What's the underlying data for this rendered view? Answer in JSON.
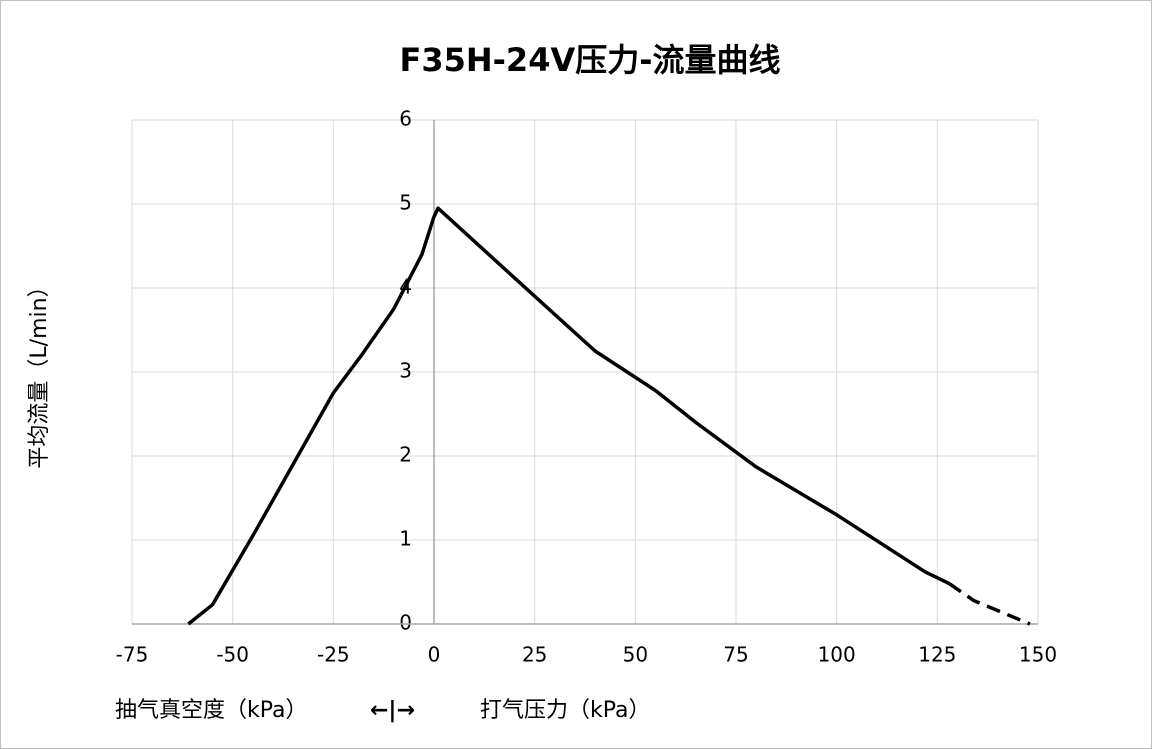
{
  "chart_data": {
    "type": "line",
    "title": "F35H-24V压力-流量曲线",
    "y_label": "平均流量（L/min）",
    "x_label_left": "抽气真空度（kPa）",
    "x_label_mid": "←|→",
    "x_label_right": "打气压力（kPa）",
    "x": [
      -61,
      -55,
      -45,
      -35,
      -25,
      -18,
      -10,
      -3,
      0,
      1,
      20,
      40,
      55,
      65,
      80,
      100,
      122,
      128,
      134,
      148
    ],
    "series": [
      {
        "color": "#000000",
        "style": "solid",
        "values": [
          0,
          0.23,
          1.05,
          1.9,
          2.75,
          3.2,
          3.75,
          4.4,
          4.85,
          4.95,
          4.12,
          3.25,
          2.78,
          2.4,
          1.87,
          1.3,
          0.62,
          0.48,
          null,
          null
        ]
      },
      {
        "color": "#000000",
        "style": "dashed",
        "values": [
          null,
          null,
          null,
          null,
          null,
          null,
          null,
          null,
          null,
          null,
          null,
          null,
          null,
          null,
          null,
          null,
          null,
          0.48,
          0.28,
          0
        ]
      }
    ],
    "xlim": [
      -75,
      150
    ],
    "xticks": [
      -75,
      -50,
      -25,
      0,
      25,
      50,
      75,
      100,
      125,
      150
    ],
    "ylim": [
      0,
      6
    ],
    "yticks": [
      0,
      1,
      2,
      3,
      4,
      5,
      6
    ],
    "grid": true
  }
}
